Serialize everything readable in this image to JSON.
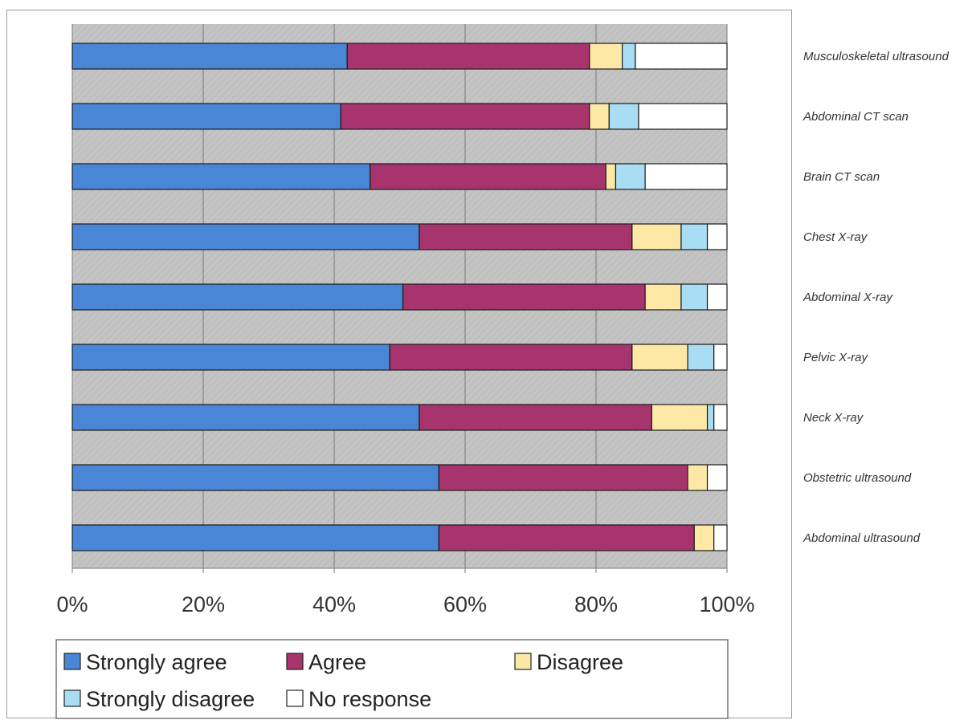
{
  "chart_data": {
    "type": "bar",
    "orientation": "horizontal",
    "stacked": true,
    "percent_stacked": true,
    "categories": [
      "Musculoskeletal ultrasound",
      "Abdominal CT scan",
      "Brain CT scan",
      "Chest X-ray",
      "Abdominal X-ray",
      "Pelvic X-ray",
      "Neck X-ray",
      "Obstetric ultrasound",
      "Abdominal ultrasound"
    ],
    "series": [
      {
        "name": "Strongly agree",
        "color": "#4a86d6",
        "values": [
          42,
          41,
          45.5,
          53,
          50.5,
          48.5,
          53,
          56,
          56
        ]
      },
      {
        "name": "Agree",
        "color": "#a8346e",
        "values": [
          37,
          38,
          36,
          32.5,
          37,
          37,
          35.5,
          38,
          39
        ]
      },
      {
        "name": "Disagree",
        "color": "#fde8a6",
        "values": [
          5,
          3,
          1.5,
          7.5,
          5.5,
          8.5,
          8.5,
          3,
          3
        ]
      },
      {
        "name": "Strongly disagree",
        "color": "#a9ddf3",
        "values": [
          2,
          4.5,
          4.5,
          4,
          4,
          4,
          1,
          0,
          0
        ]
      },
      {
        "name": "No response",
        "color": "#ffffff",
        "values": [
          14,
          13.5,
          12.5,
          3,
          3,
          2,
          2,
          3,
          2
        ]
      }
    ],
    "x_ticks": [
      "0%",
      "20%",
      "40%",
      "60%",
      "80%",
      "100%"
    ],
    "xlim": [
      0,
      100
    ],
    "grid": true,
    "plot_background": "#c0c0c0",
    "legend_position": "bottom",
    "label_position": "right"
  }
}
